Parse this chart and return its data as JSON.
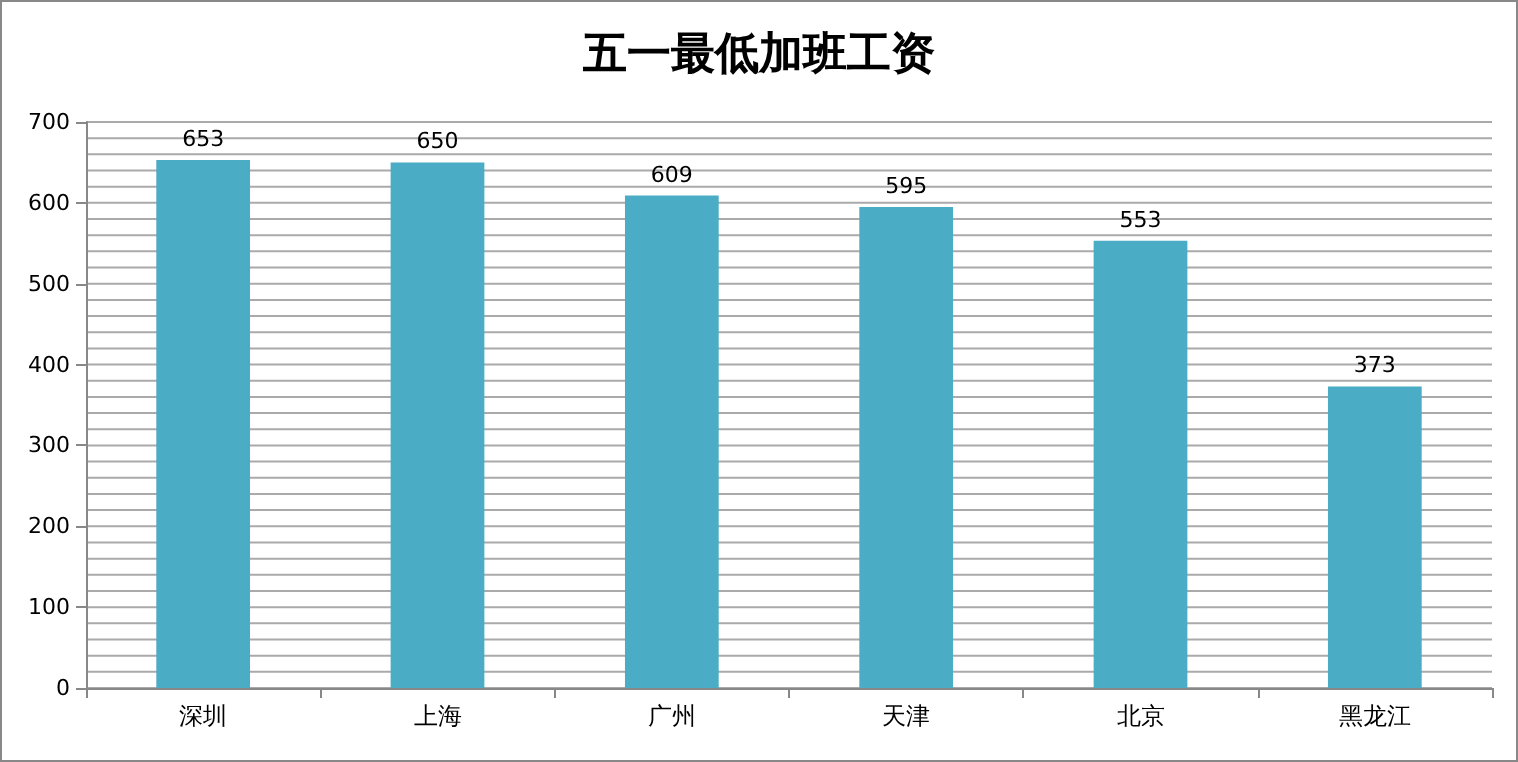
{
  "chart_data": {
    "type": "bar",
    "title": "五一最低加班工资",
    "categories": [
      "深圳",
      "上海",
      "广州",
      "天津",
      "北京",
      "黑龙江"
    ],
    "values": [
      653,
      650,
      609,
      595,
      553,
      373
    ],
    "color": "#4bacc6",
    "data_labels": true,
    "ylim": [
      0,
      700
    ],
    "yticks": [
      0,
      {
        "value": 20,
        "label": null
      },
      {
        "value": 40,
        "label": null
      },
      {
        "value": 60,
        "label": null
      },
      {
        "value": 80,
        "label": null
      },
      100,
      {
        "value": 120,
        "label": null
      },
      {
        "value": 140,
        "label": null
      },
      {
        "value": 160,
        "label": null
      },
      {
        "value": 180,
        "label": null
      },
      200,
      {
        "value": 220,
        "label": null
      },
      {
        "value": 240,
        "label": null
      },
      {
        "value": 260,
        "label": null
      },
      {
        "value": 280,
        "label": null
      },
      300,
      {
        "value": 320,
        "label": null
      },
      {
        "value": 340,
        "label": null
      },
      {
        "value": 360,
        "label": null
      },
      {
        "value": 380,
        "label": null
      },
      400,
      {
        "value": 420,
        "label": null
      },
      {
        "value": 440,
        "label": null
      },
      {
        "value": 460,
        "label": null
      },
      {
        "value": 480,
        "label": null
      },
      500,
      {
        "value": 520,
        "label": null
      },
      {
        "value": 540,
        "label": null
      },
      {
        "value": 560,
        "label": null
      },
      {
        "value": 580,
        "label": null
      },
      600,
      {
        "value": 620,
        "label": null
      },
      {
        "value": 640,
        "label": null
      },
      {
        "value": 660,
        "label": null
      },
      {
        "value": 680,
        "label": null
      },
      700
    ],
    "grid": true
  }
}
